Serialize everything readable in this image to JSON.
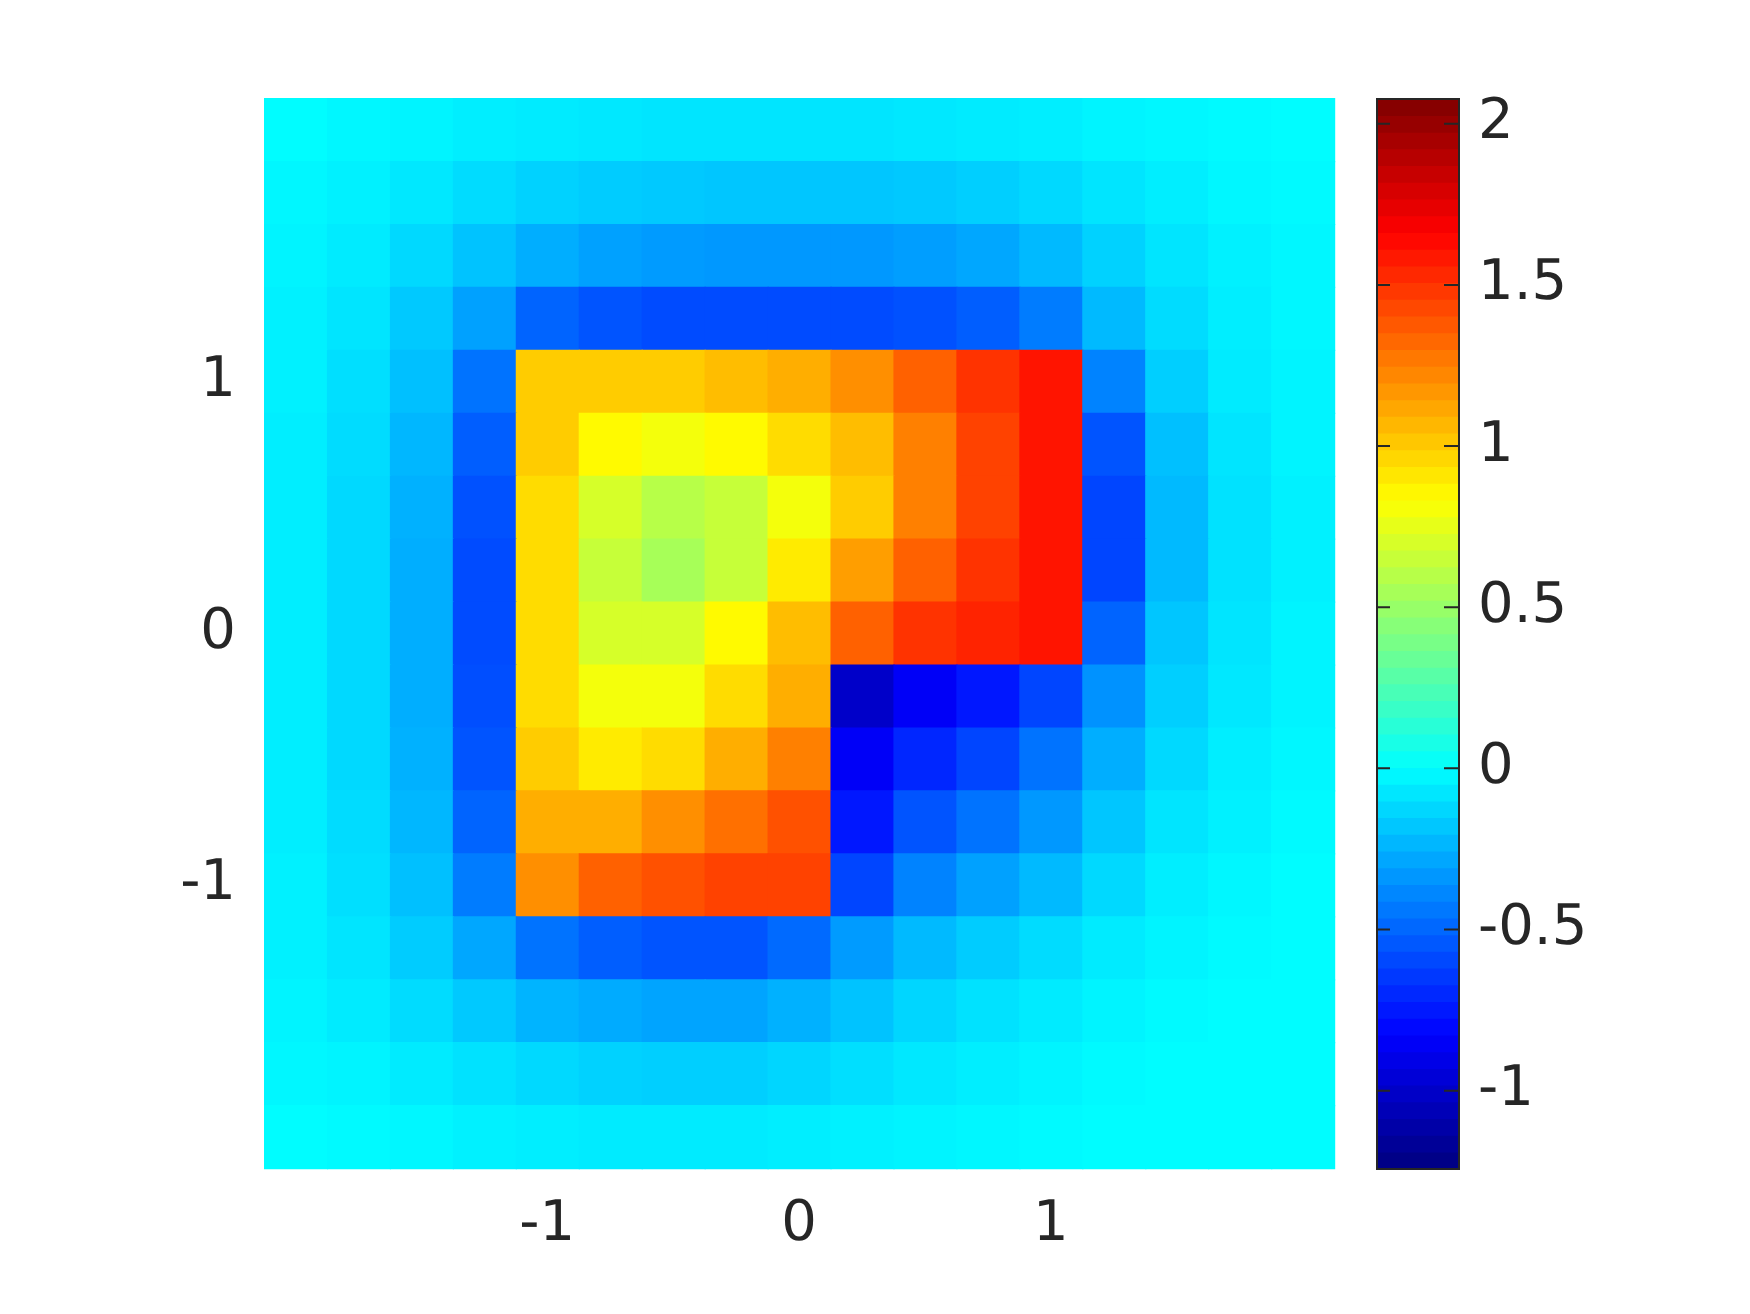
{
  "chart_data": {
    "type": "heatmap",
    "categories": [
      null,
      null,
      null,
      null,
      "-1",
      null,
      null,
      null,
      "0",
      null,
      null,
      null,
      "1",
      null,
      null,
      null,
      null
    ],
    "y_categories": [
      null,
      null,
      null,
      null,
      "1",
      null,
      null,
      null,
      "0",
      null,
      null,
      null,
      "-1",
      null,
      null,
      null,
      null
    ],
    "clim": [
      -1.24,
      2.08
    ],
    "cticks": [
      -1,
      -0.5,
      0,
      0.5,
      1,
      1.5,
      2
    ],
    "cells": [
      [
        0,
        -0.02,
        -0.03,
        -0.05,
        -0.06,
        -0.07,
        -0.08,
        -0.08,
        -0.08,
        -0.08,
        -0.07,
        -0.06,
        -0.05,
        -0.03,
        -0.02,
        -0.01,
        0
      ],
      [
        -0.02,
        -0.04,
        -0.07,
        -0.11,
        -0.14,
        -0.16,
        -0.17,
        -0.18,
        -0.18,
        -0.18,
        -0.17,
        -0.15,
        -0.12,
        -0.08,
        -0.05,
        -0.02,
        -0.01
      ],
      [
        -0.03,
        -0.06,
        -0.12,
        -0.19,
        -0.26,
        -0.3,
        -0.32,
        -0.33,
        -0.33,
        -0.33,
        -0.31,
        -0.28,
        -0.22,
        -0.14,
        -0.08,
        -0.04,
        -0.02
      ],
      [
        -0.04,
        -0.08,
        -0.17,
        -0.3,
        -0.5,
        -0.55,
        -0.58,
        -0.58,
        -0.58,
        -0.58,
        -0.56,
        -0.52,
        -0.42,
        -0.22,
        -0.11,
        -0.05,
        -0.02
      ],
      [
        -0.04,
        -0.1,
        -0.2,
        -0.45,
        1.0,
        1.0,
        1.0,
        1.05,
        1.1,
        1.2,
        1.35,
        1.5,
        1.6,
        -0.4,
        -0.15,
        -0.06,
        -0.03
      ],
      [
        -0.05,
        -0.11,
        -0.23,
        -0.52,
        1.0,
        0.85,
        0.8,
        0.85,
        0.95,
        1.05,
        1.25,
        1.45,
        1.6,
        -0.55,
        -0.2,
        -0.08,
        -0.03
      ],
      [
        -0.05,
        -0.12,
        -0.25,
        -0.56,
        0.95,
        0.7,
        0.6,
        0.65,
        0.8,
        1.0,
        1.25,
        1.45,
        1.6,
        -0.6,
        -0.22,
        -0.09,
        -0.04
      ],
      [
        -0.05,
        -0.12,
        -0.26,
        -0.58,
        0.95,
        0.65,
        0.55,
        0.65,
        0.9,
        1.15,
        1.35,
        1.5,
        1.6,
        -0.6,
        -0.22,
        -0.09,
        -0.04
      ],
      [
        -0.05,
        -0.12,
        -0.26,
        -0.58,
        0.95,
        0.7,
        0.7,
        0.85,
        1.05,
        1.35,
        1.5,
        1.55,
        1.6,
        -0.5,
        -0.18,
        -0.08,
        -0.03
      ],
      [
        -0.05,
        -0.12,
        -0.26,
        -0.57,
        0.95,
        0.8,
        0.8,
        0.95,
        1.1,
        -1.0,
        -0.85,
        -0.75,
        -0.6,
        -0.35,
        -0.15,
        -0.07,
        -0.03
      ],
      [
        -0.05,
        -0.12,
        -0.25,
        -0.55,
        1.0,
        0.9,
        0.95,
        1.1,
        1.25,
        -0.85,
        -0.7,
        -0.6,
        -0.45,
        -0.26,
        -0.12,
        -0.05,
        -0.02
      ],
      [
        -0.05,
        -0.11,
        -0.23,
        -0.5,
        1.1,
        1.1,
        1.2,
        1.3,
        1.4,
        -0.75,
        -0.55,
        -0.45,
        -0.33,
        -0.18,
        -0.08,
        -0.04,
        -0.01
      ],
      [
        -0.04,
        -0.1,
        -0.2,
        -0.42,
        1.2,
        1.35,
        1.4,
        1.45,
        1.45,
        -0.6,
        -0.4,
        -0.3,
        -0.22,
        -0.12,
        -0.05,
        -0.02,
        0
      ],
      [
        -0.04,
        -0.08,
        -0.16,
        -0.28,
        -0.45,
        -0.52,
        -0.55,
        -0.55,
        -0.48,
        -0.32,
        -0.22,
        -0.16,
        -0.11,
        -0.06,
        -0.03,
        -0.01,
        0
      ],
      [
        -0.03,
        -0.06,
        -0.11,
        -0.17,
        -0.24,
        -0.27,
        -0.29,
        -0.29,
        -0.25,
        -0.19,
        -0.13,
        -0.09,
        -0.06,
        -0.03,
        -0.01,
        0,
        0
      ],
      [
        -0.02,
        -0.03,
        -0.06,
        -0.09,
        -0.12,
        -0.14,
        -0.15,
        -0.15,
        -0.13,
        -0.1,
        -0.07,
        -0.05,
        -0.03,
        -0.01,
        0,
        0,
        0
      ],
      [
        0,
        -0.01,
        -0.02,
        -0.04,
        -0.05,
        -0.06,
        -0.06,
        -0.06,
        -0.05,
        -0.04,
        -0.03,
        -0.02,
        -0.01,
        0,
        0,
        0,
        0
      ]
    ]
  }
}
